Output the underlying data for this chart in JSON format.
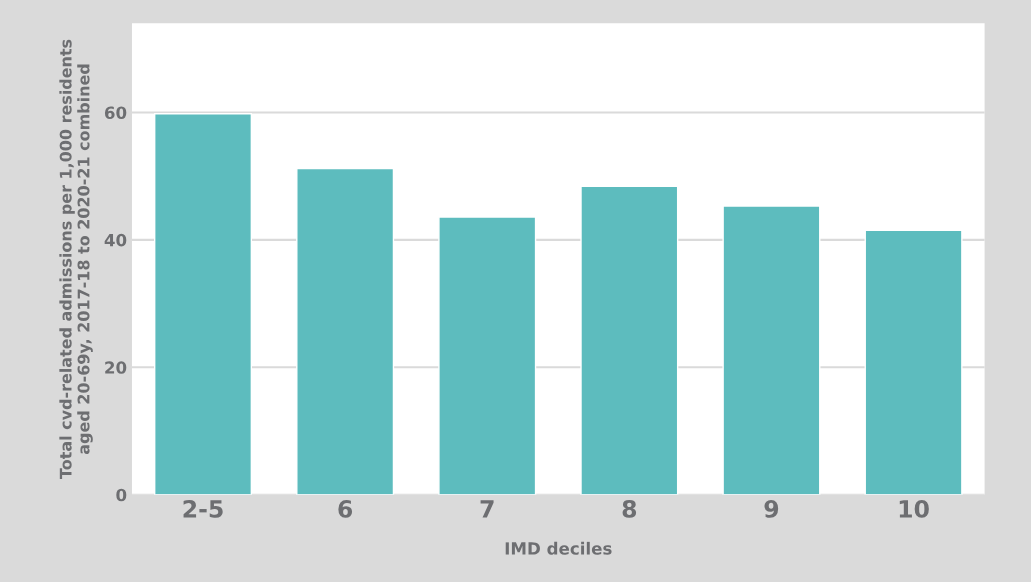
{
  "chart_data": {
    "type": "bar",
    "xlabel": "IMD deciles",
    "ylabel": "Total cvd-related admissions per 1,000 residents\naged 20-69y, 2017-18 to 2020-21 combined",
    "categories": [
      "2-5",
      "6",
      "7",
      "8",
      "9",
      "10"
    ],
    "values": [
      59.8,
      51.2,
      43.6,
      48.4,
      45.3,
      41.5
    ],
    "color": "#5dbcbe",
    "ylim": [
      0,
      74
    ],
    "yticks": [
      0,
      20,
      40,
      60
    ],
    "grid": "y",
    "legend": false
  }
}
